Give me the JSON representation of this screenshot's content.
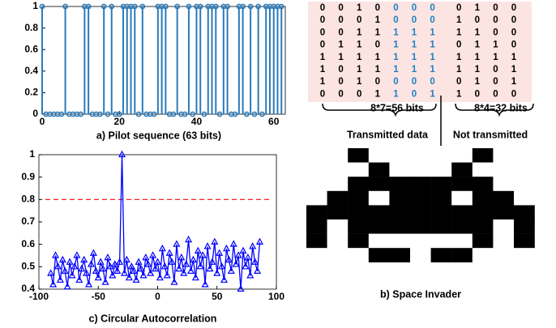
{
  "chart_data": [
    {
      "type": "stem",
      "caption": "a) Pilot sequence (63 bits)",
      "x": [
        0,
        1,
        2,
        3,
        4,
        5,
        6,
        7,
        8,
        9,
        10,
        11,
        12,
        13,
        14,
        15,
        16,
        17,
        18,
        19,
        20,
        21,
        22,
        23,
        24,
        25,
        26,
        27,
        28,
        29,
        30,
        31,
        32,
        33,
        34,
        35,
        36,
        37,
        38,
        39,
        40,
        41,
        42,
        43,
        44,
        45,
        46,
        47,
        48,
        49,
        50,
        51,
        52,
        53,
        54,
        55,
        56,
        57,
        58,
        59,
        60,
        61,
        62
      ],
      "values": [
        1,
        0,
        0,
        0,
        0,
        0,
        1,
        0,
        0,
        0,
        0,
        1,
        1,
        0,
        0,
        0,
        1,
        0,
        1,
        0,
        0,
        1,
        1,
        1,
        1,
        0,
        1,
        0,
        0,
        0,
        1,
        1,
        1,
        0,
        0,
        1,
        0,
        0,
        1,
        0,
        1,
        1,
        0,
        1,
        1,
        1,
        0,
        1,
        1,
        0,
        0,
        1,
        1,
        0,
        1,
        0,
        1,
        0,
        1,
        1,
        1,
        1,
        1
      ],
      "color": "#2b7bba",
      "xlim": [
        0,
        63
      ],
      "ylim": [
        0,
        1
      ],
      "xticks": [
        0,
        20,
        40,
        60
      ],
      "yticks": [
        0,
        0.2,
        0.4,
        0.6,
        0.8,
        1
      ],
      "grid": false
    },
    {
      "type": "line",
      "caption": "c) Circular Autocorrelation",
      "x": [
        -90,
        -88,
        -86,
        -84,
        -82,
        -80,
        -78,
        -76,
        -74,
        -72,
        -70,
        -68,
        -66,
        -64,
        -62,
        -60,
        -58,
        -56,
        -54,
        -52,
        -50,
        -48,
        -46,
        -44,
        -42,
        -40,
        -38,
        -36,
        -34,
        -32,
        -30,
        -28,
        -26,
        -24,
        -22,
        -20,
        -18,
        -16,
        -14,
        -12,
        -10,
        -8,
        -6,
        -4,
        -2,
        0,
        2,
        4,
        6,
        8,
        10,
        12,
        14,
        16,
        18,
        20,
        22,
        24,
        26,
        28,
        30,
        32,
        34,
        36,
        38,
        40,
        42,
        44,
        46,
        48,
        50,
        52,
        54,
        56,
        58,
        60,
        62,
        64,
        66,
        68,
        70,
        72,
        74,
        76,
        78,
        80,
        82,
        84,
        86
      ],
      "values": [
        0.47,
        0.42,
        0.55,
        0.5,
        0.44,
        0.53,
        0.48,
        0.41,
        0.52,
        0.46,
        0.5,
        0.55,
        0.44,
        0.49,
        0.53,
        0.47,
        0.42,
        0.51,
        0.56,
        0.48,
        0.45,
        0.52,
        0.49,
        0.43,
        0.54,
        0.5,
        0.46,
        0.51,
        0.48,
        0.52,
        1.0,
        0.47,
        0.53,
        0.45,
        0.5,
        0.48,
        0.44,
        0.52,
        0.49,
        0.46,
        0.54,
        0.51,
        0.47,
        0.55,
        0.49,
        0.52,
        0.45,
        0.58,
        0.5,
        0.46,
        0.56,
        0.52,
        0.43,
        0.6,
        0.49,
        0.54,
        0.47,
        0.51,
        0.62,
        0.48,
        0.53,
        0.45,
        0.57,
        0.5,
        0.55,
        0.42,
        0.59,
        0.49,
        0.52,
        0.61,
        0.47,
        0.56,
        0.5,
        0.44,
        0.58,
        0.53,
        0.48,
        0.6,
        0.51,
        0.55,
        0.4,
        0.57,
        0.5,
        0.54,
        0.46,
        0.59,
        0.52,
        0.48,
        0.61
      ],
      "color": "#0000ff",
      "threshold": 0.8,
      "threshold_color": "#ff0000",
      "xlim": [
        -100,
        100
      ],
      "ylim": [
        0.4,
        1
      ],
      "xticks": [
        -100,
        -50,
        0,
        50,
        100
      ],
      "yticks": [
        0.4,
        0.5,
        0.6,
        0.7,
        0.8,
        0.9,
        1
      ],
      "grid": false
    }
  ],
  "bit_table": {
    "rows": [
      [
        0,
        0,
        1,
        0,
        0,
        0,
        0,
        0,
        1,
        0,
        0
      ],
      [
        0,
        0,
        0,
        1,
        0,
        0,
        0,
        1,
        0,
        0,
        0
      ],
      [
        0,
        0,
        1,
        1,
        1,
        1,
        1,
        1,
        1,
        0,
        0
      ],
      [
        0,
        1,
        1,
        0,
        1,
        1,
        1,
        0,
        1,
        1,
        0
      ],
      [
        1,
        1,
        1,
        1,
        1,
        1,
        1,
        1,
        1,
        1,
        1
      ],
      [
        1,
        0,
        1,
        1,
        1,
        1,
        1,
        1,
        1,
        0,
        1
      ],
      [
        1,
        0,
        1,
        0,
        0,
        0,
        0,
        0,
        1,
        0,
        1
      ],
      [
        0,
        0,
        0,
        1,
        1,
        0,
        1,
        1,
        0,
        0,
        0
      ]
    ],
    "highlight_columns": [
      4,
      5,
      6
    ],
    "highlight_color": "#1f7fc4",
    "transmitted_bits": "8*7=56 bits",
    "not_transmitted_bits": "8*4=32 bits",
    "transmitted_caption": "Transmitted data",
    "not_transmitted_caption": "Not transmitted"
  },
  "image": {
    "caption": "b) Space Invader"
  }
}
